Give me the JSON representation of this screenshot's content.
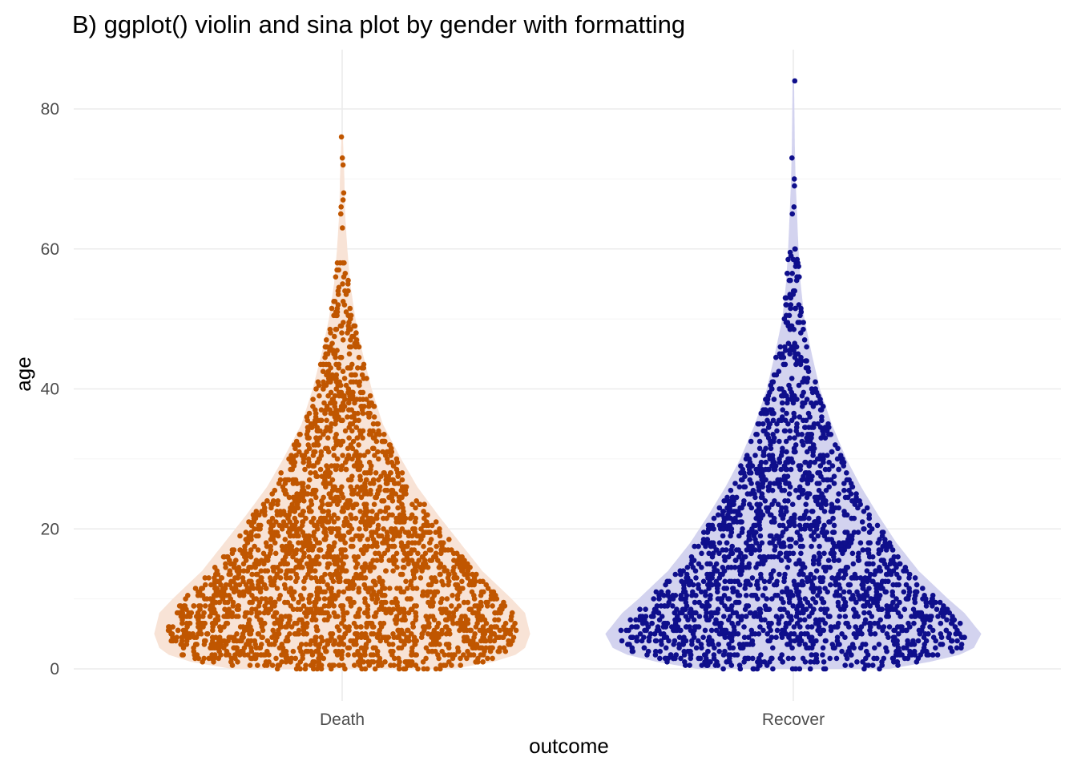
{
  "chart_data": {
    "type": "violin-sina",
    "title": "B) ggplot() violin and sina plot by gender with formatting",
    "xlabel": "outcome",
    "ylabel": "age",
    "categories": [
      "Death",
      "Recover"
    ],
    "ylim": [
      -5,
      89
    ],
    "yticks": [
      0,
      20,
      40,
      60,
      80
    ],
    "yticklabels": [
      "0",
      "20",
      "40",
      "60",
      "80"
    ],
    "grid": true,
    "legend": "none",
    "series": [
      {
        "category": "Death",
        "point_color": "#c05600",
        "violin_fill": "#f8e3d6",
        "n_points": 2600,
        "max_age": 76,
        "top_outliers": [
          76,
          73,
          72,
          68,
          67,
          66,
          65,
          63
        ]
      },
      {
        "category": "Recover",
        "point_color": "#0f0f8c",
        "violin_fill": "#d3d3ef",
        "n_points": 2000,
        "max_age": 84,
        "top_outliers": [
          84,
          73,
          70,
          69,
          66,
          65
        ]
      }
    ]
  }
}
